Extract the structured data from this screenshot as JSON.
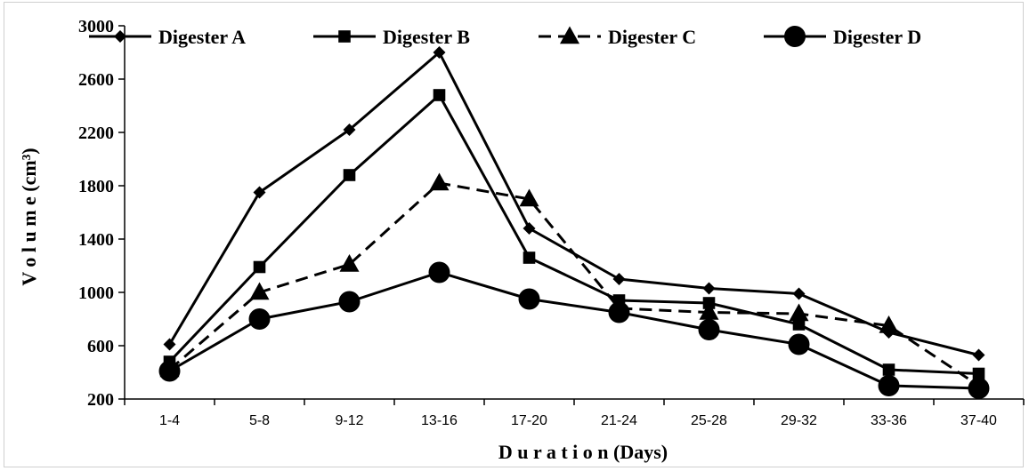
{
  "chart_data": {
    "type": "line",
    "categories": [
      "1-4",
      "5-8",
      "9-12",
      "13-16",
      "17-20",
      "21-24",
      "25-28",
      "29-32",
      "33-36",
      "37-40"
    ],
    "series": [
      {
        "name": "Digester A",
        "values": [
          610,
          1750,
          2220,
          2800,
          1480,
          1100,
          1030,
          990,
          700,
          530
        ],
        "marker": "diamond",
        "dash": "solid"
      },
      {
        "name": "Digester B",
        "values": [
          480,
          1190,
          1880,
          2480,
          1260,
          940,
          920,
          760,
          420,
          390
        ],
        "marker": "square",
        "dash": "solid"
      },
      {
        "name": "Digester C",
        "values": [
          420,
          1000,
          1210,
          1820,
          1700,
          880,
          850,
          840,
          750,
          300
        ],
        "marker": "triangle",
        "dash": "dashed"
      },
      {
        "name": "Digester D",
        "values": [
          410,
          800,
          930,
          1150,
          950,
          850,
          720,
          610,
          300,
          280
        ],
        "marker": "circle",
        "dash": "solid"
      }
    ],
    "yticks": [
      "200",
      "600",
      "1000",
      "1400",
      "1800",
      "2200",
      "2600",
      "3000"
    ],
    "xlabel": "D u r a t i o n (Days)",
    "ylabel": "V o l u m e (cm³)",
    "ylim": [
      200,
      3000
    ],
    "grid": false,
    "legend_position": "top"
  }
}
